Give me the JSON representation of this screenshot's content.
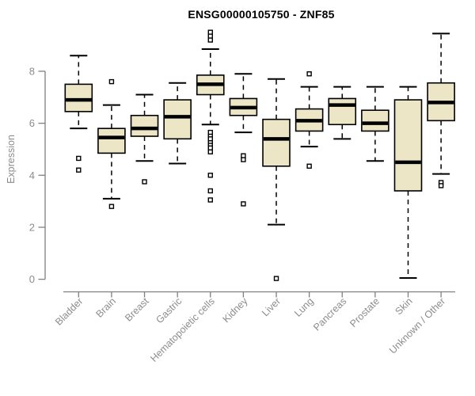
{
  "figure": {
    "title": "ENSG00000105750 - ZNF85"
  },
  "chart_data": {
    "type": "boxplot",
    "title": "ENSG00000105750 - ZNF85",
    "xlabel": "",
    "ylabel": "Expression",
    "ylim": [
      0,
      9.7
    ],
    "yticks": [
      0,
      2,
      4,
      6,
      8
    ],
    "grid": false,
    "legend": null,
    "categories": [
      "Bladder",
      "Brain",
      "Breast",
      "Gastric",
      "Hematopoietic cells",
      "Kidney",
      "Liver",
      "Lung",
      "Pancreas",
      "Prostate",
      "Skin",
      "Unknown / Other"
    ],
    "boxes": [
      {
        "category": "Bladder",
        "low": 5.8,
        "q1": 6.45,
        "median": 6.9,
        "q3": 7.5,
        "high": 8.6,
        "outliers": [
          4.65,
          4.2
        ]
      },
      {
        "category": "Brain",
        "low": 3.1,
        "q1": 4.85,
        "median": 5.45,
        "q3": 5.8,
        "high": 6.7,
        "outliers": [
          7.6,
          2.8
        ]
      },
      {
        "category": "Breast",
        "low": 4.55,
        "q1": 5.5,
        "median": 5.8,
        "q3": 6.3,
        "high": 7.1,
        "outliers": [
          3.75
        ]
      },
      {
        "category": "Gastric",
        "low": 4.45,
        "q1": 5.4,
        "median": 6.25,
        "q3": 6.9,
        "high": 7.55,
        "outliers": []
      },
      {
        "category": "Hematopoietic cells",
        "low": 5.95,
        "q1": 7.1,
        "median": 7.5,
        "q3": 7.85,
        "high": 8.85,
        "outliers": [
          9.5,
          9.35,
          9.2,
          5.65,
          5.5,
          5.4,
          5.25,
          5.15,
          5.05,
          4.9,
          4.0,
          3.4,
          3.05
        ]
      },
      {
        "category": "Kidney",
        "low": 5.65,
        "q1": 6.3,
        "median": 6.6,
        "q3": 6.95,
        "high": 7.9,
        "outliers": [
          4.75,
          4.6,
          2.9
        ]
      },
      {
        "category": "Liver",
        "low": 2.1,
        "q1": 4.35,
        "median": 5.4,
        "q3": 6.15,
        "high": 7.7,
        "outliers": [
          0.03
        ]
      },
      {
        "category": "Lung",
        "low": 5.1,
        "q1": 5.7,
        "median": 6.1,
        "q3": 6.55,
        "high": 7.4,
        "outliers": [
          7.9,
          4.35
        ]
      },
      {
        "category": "Pancreas",
        "low": 5.4,
        "q1": 5.95,
        "median": 6.7,
        "q3": 6.95,
        "high": 7.4,
        "outliers": []
      },
      {
        "category": "Prostate",
        "low": 4.55,
        "q1": 5.7,
        "median": 6.0,
        "q3": 6.5,
        "high": 7.4,
        "outliers": []
      },
      {
        "category": "Skin",
        "low": 0.05,
        "q1": 3.4,
        "median": 4.5,
        "q3": 6.9,
        "high": 7.4,
        "outliers": []
      },
      {
        "category": "Unknown / Other",
        "low": 4.05,
        "q1": 6.1,
        "median": 6.8,
        "q3": 7.55,
        "high": 9.45,
        "outliers": [
          3.72,
          3.6
        ]
      }
    ],
    "colors": {
      "box_fill": "#ece5c6",
      "box_stroke": "#000000",
      "median": "#000000",
      "whisker": "#000000",
      "axis": "#808080",
      "tick_label": "#8c8c8c",
      "title": "#000000",
      "background": "#ffffff"
    }
  }
}
